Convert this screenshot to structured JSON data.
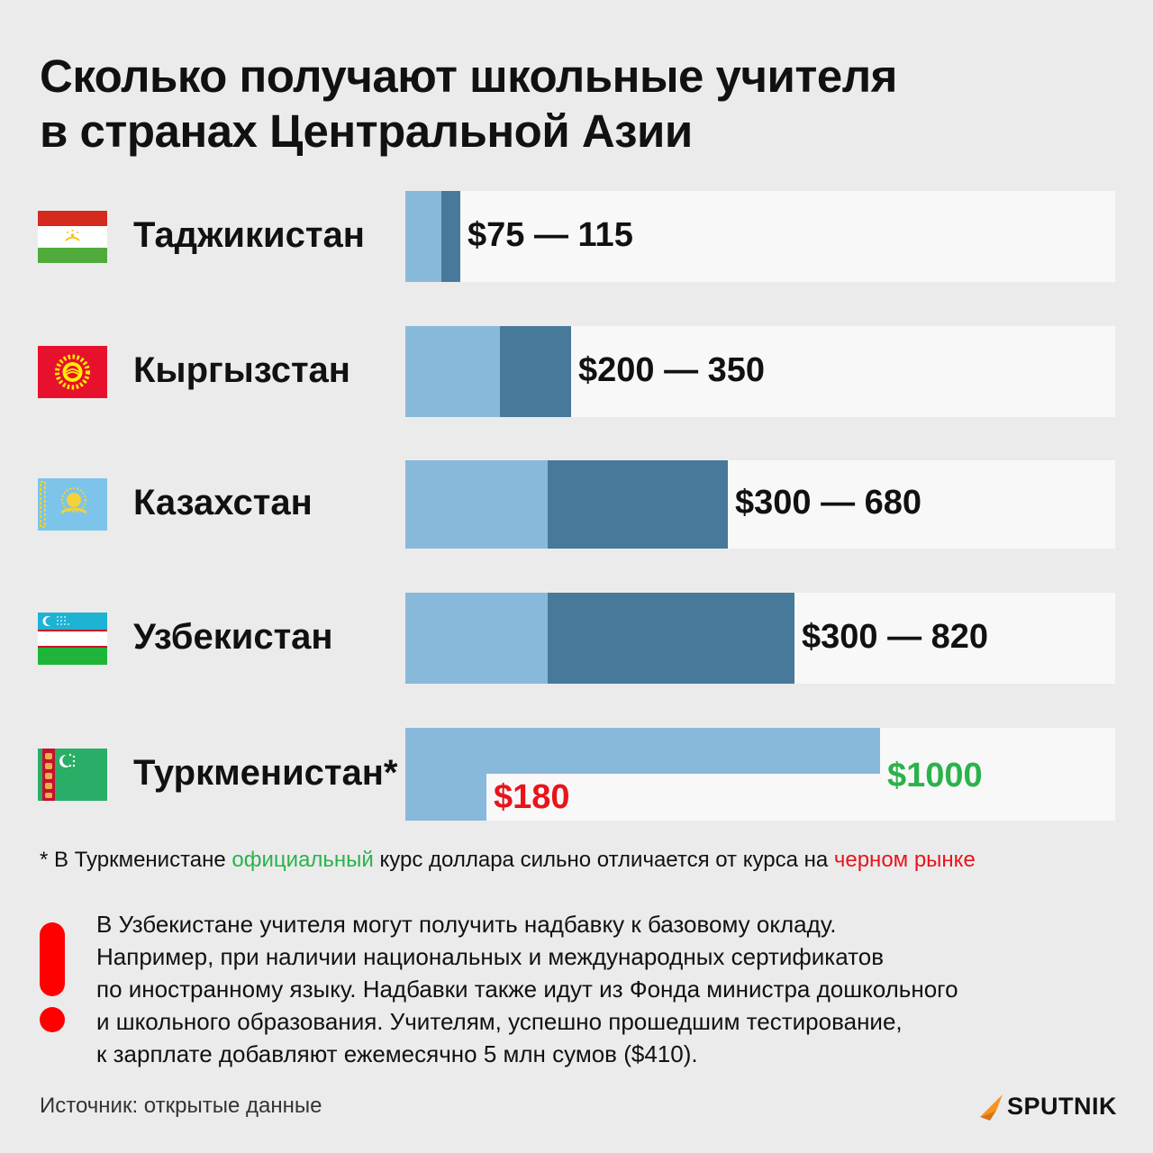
{
  "title": {
    "line1": "Сколько получают школьные учителя",
    "line2": "в странах Центральной Азии"
  },
  "chart_data": {
    "type": "bar",
    "title": "Сколько получают школьные учителя в странах Центральной Азии",
    "categories": [
      "Таджикистан",
      "Кыргызстан",
      "Казахстан",
      "Узбекистан",
      "Туркменистан*"
    ],
    "series": [
      {
        "name": "min",
        "values": [
          75,
          200,
          300,
          300,
          180
        ]
      },
      {
        "name": "max",
        "values": [
          115,
          350,
          680,
          820,
          1000
        ]
      }
    ],
    "flags": [
      "tajikistan-flag",
      "kyrgyzstan-flag",
      "kazakhstan-flag",
      "uzbekistan-flag",
      "turkmenistan-flag"
    ],
    "labels": [
      "$75 — 115",
      "$200 — 350",
      "$300 — 680",
      "$300 — 820"
    ],
    "turkmenistan": {
      "official": "$1000",
      "black_market": "$180"
    },
    "xlim": [
      0,
      1000
    ],
    "grid": false
  },
  "colors": {
    "range_light": "#88b9da",
    "range_dark": "#47799a",
    "track": "#f8f8f8",
    "official": "#2bb24c",
    "black_market": "#e8141c",
    "alert": "#ff0000",
    "brand": "#f7941d"
  },
  "footnote": {
    "prefix": "* В Туркменистане ",
    "official": "официальный",
    "middle": " курс доллара сильно отличается от курса на ",
    "black": "черном рынке"
  },
  "note": {
    "icon": "exclamation-icon",
    "lines": [
      "В Узбекистане учителя могут получить надбавку к базовому окладу.",
      "Например, при наличии национальных и международных сертификатов",
      "по иностранному языку. Надбавки также идут из Фонда министра дошкольного",
      "и школьного образования. Учителям, успешно прошедшим тестирование,",
      "к зарплате добавляют ежемесячно 5 млн сумов ($410)."
    ]
  },
  "source": "Источник: открытые данные",
  "logo": {
    "text": "SPUTNIK",
    "icon": "sputnik-logo-icon"
  }
}
